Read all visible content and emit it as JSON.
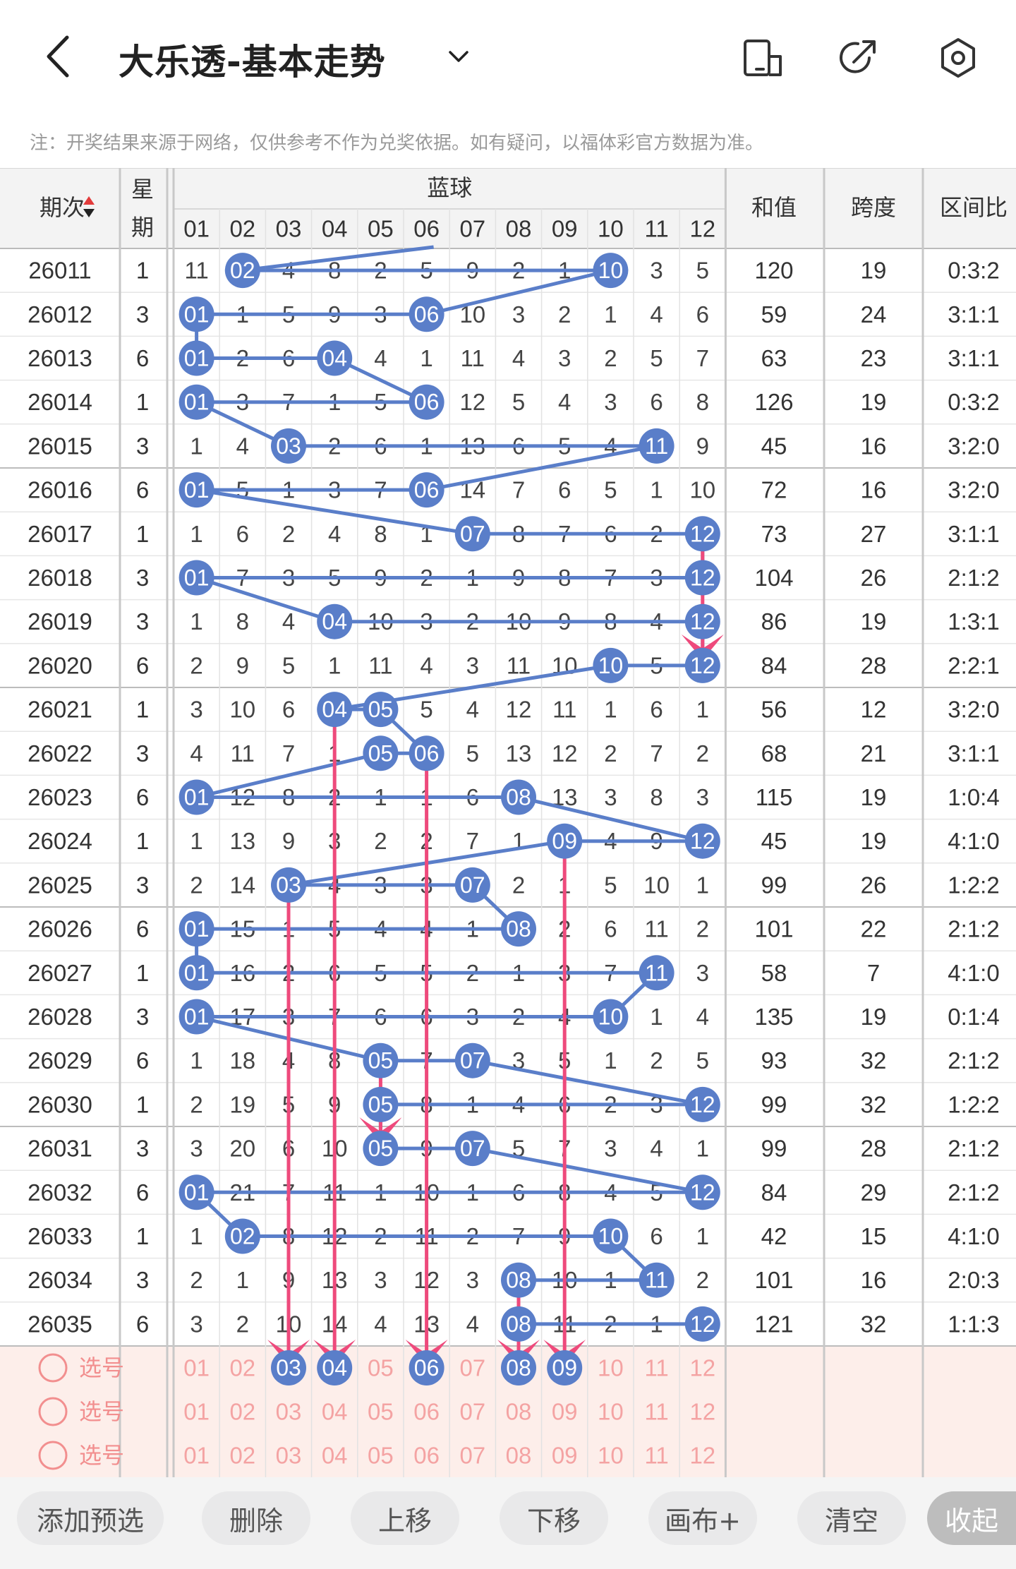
{
  "header": {
    "title": "大乐透-基本走势",
    "note": "注：开奖结果来源于网络，仅供参考不作为兑奖依据。如有疑问，以福体彩官方数据为准。",
    "icons": [
      "back-icon",
      "chevron-down-icon",
      "screen-icon",
      "share-icon",
      "settings-icon"
    ]
  },
  "table": {
    "col_period": "期次",
    "col_week": "星期",
    "col_blue": "蓝球",
    "col_sum": "和值",
    "col_span": "跨度",
    "col_ratio": "区间比",
    "ball_numbers": [
      "01",
      "02",
      "03",
      "04",
      "05",
      "06",
      "07",
      "08",
      "09",
      "10",
      "11",
      "12"
    ],
    "rows": [
      {
        "period": "26011",
        "week": "1",
        "cells": [
          "11",
          "02",
          "4",
          "8",
          "2",
          "5",
          "9",
          "2",
          "1",
          "10",
          "3",
          "5"
        ],
        "hits": [
          2,
          10
        ],
        "sum": "120",
        "span": "19",
        "ratio": "0:3:2"
      },
      {
        "period": "26012",
        "week": "3",
        "cells": [
          "01",
          "1",
          "5",
          "9",
          "3",
          "06",
          "10",
          "3",
          "2",
          "1",
          "4",
          "6"
        ],
        "hits": [
          1,
          6
        ],
        "sum": "59",
        "span": "24",
        "ratio": "3:1:1"
      },
      {
        "period": "26013",
        "week": "6",
        "cells": [
          "01",
          "2",
          "6",
          "04",
          "4",
          "1",
          "11",
          "4",
          "3",
          "2",
          "5",
          "7"
        ],
        "hits": [
          1,
          4
        ],
        "sum": "63",
        "span": "23",
        "ratio": "3:1:1"
      },
      {
        "period": "26014",
        "week": "1",
        "cells": [
          "01",
          "3",
          "7",
          "1",
          "5",
          "06",
          "12",
          "5",
          "4",
          "3",
          "6",
          "8"
        ],
        "hits": [
          1,
          6
        ],
        "sum": "126",
        "span": "19",
        "ratio": "0:3:2"
      },
      {
        "period": "26015",
        "week": "3",
        "cells": [
          "1",
          "4",
          "03",
          "2",
          "6",
          "1",
          "13",
          "6",
          "5",
          "4",
          "11",
          "9"
        ],
        "hits": [
          3,
          11
        ],
        "sum": "45",
        "span": "16",
        "ratio": "3:2:0"
      },
      {
        "period": "26016",
        "week": "6",
        "cells": [
          "01",
          "5",
          "1",
          "3",
          "7",
          "06",
          "14",
          "7",
          "6",
          "5",
          "1",
          "10"
        ],
        "hits": [
          1,
          6
        ],
        "sum": "72",
        "span": "16",
        "ratio": "3:2:0"
      },
      {
        "period": "26017",
        "week": "1",
        "cells": [
          "1",
          "6",
          "2",
          "4",
          "8",
          "1",
          "07",
          "8",
          "7",
          "6",
          "2",
          "12"
        ],
        "hits": [
          7,
          12
        ],
        "sum": "73",
        "span": "27",
        "ratio": "3:1:1"
      },
      {
        "period": "26018",
        "week": "3",
        "cells": [
          "01",
          "7",
          "3",
          "5",
          "9",
          "2",
          "1",
          "9",
          "8",
          "7",
          "3",
          "12"
        ],
        "hits": [
          1,
          12
        ],
        "sum": "104",
        "span": "26",
        "ratio": "2:1:2"
      },
      {
        "period": "26019",
        "week": "3",
        "cells": [
          "1",
          "8",
          "4",
          "04",
          "10",
          "3",
          "2",
          "10",
          "9",
          "8",
          "4",
          "12"
        ],
        "hits": [
          4,
          12
        ],
        "sum": "86",
        "span": "19",
        "ratio": "1:3:1"
      },
      {
        "period": "26020",
        "week": "6",
        "cells": [
          "2",
          "9",
          "5",
          "1",
          "11",
          "4",
          "3",
          "11",
          "10",
          "10",
          "5",
          "12"
        ],
        "hits": [
          10,
          12
        ],
        "sum": "84",
        "span": "28",
        "ratio": "2:2:1"
      },
      {
        "period": "26021",
        "week": "1",
        "cells": [
          "3",
          "10",
          "6",
          "04",
          "05",
          "5",
          "4",
          "12",
          "11",
          "1",
          "6",
          "1"
        ],
        "hits": [
          4,
          5
        ],
        "sum": "56",
        "span": "12",
        "ratio": "3:2:0"
      },
      {
        "period": "26022",
        "week": "3",
        "cells": [
          "4",
          "11",
          "7",
          "1",
          "05",
          "06",
          "5",
          "13",
          "12",
          "2",
          "7",
          "2"
        ],
        "hits": [
          5,
          6
        ],
        "sum": "68",
        "span": "21",
        "ratio": "3:1:1"
      },
      {
        "period": "26023",
        "week": "6",
        "cells": [
          "01",
          "12",
          "8",
          "2",
          "1",
          "1",
          "6",
          "08",
          "13",
          "3",
          "8",
          "3"
        ],
        "hits": [
          1,
          8
        ],
        "sum": "115",
        "span": "19",
        "ratio": "1:0:4"
      },
      {
        "period": "26024",
        "week": "1",
        "cells": [
          "1",
          "13",
          "9",
          "3",
          "2",
          "2",
          "7",
          "1",
          "09",
          "4",
          "9",
          "12"
        ],
        "hits": [
          9,
          12
        ],
        "sum": "45",
        "span": "19",
        "ratio": "4:1:0"
      },
      {
        "period": "26025",
        "week": "3",
        "cells": [
          "2",
          "14",
          "03",
          "4",
          "3",
          "3",
          "07",
          "2",
          "1",
          "5",
          "10",
          "1"
        ],
        "hits": [
          3,
          7
        ],
        "sum": "99",
        "span": "26",
        "ratio": "1:2:2"
      },
      {
        "period": "26026",
        "week": "6",
        "cells": [
          "01",
          "15",
          "1",
          "5",
          "4",
          "4",
          "1",
          "08",
          "2",
          "6",
          "11",
          "2"
        ],
        "hits": [
          1,
          8
        ],
        "sum": "101",
        "span": "22",
        "ratio": "2:1:2"
      },
      {
        "period": "26027",
        "week": "1",
        "cells": [
          "01",
          "16",
          "2",
          "6",
          "5",
          "5",
          "2",
          "1",
          "3",
          "7",
          "11",
          "3"
        ],
        "hits": [
          1,
          11
        ],
        "sum": "58",
        "span": "7",
        "ratio": "4:1:0"
      },
      {
        "period": "26028",
        "week": "3",
        "cells": [
          "01",
          "17",
          "3",
          "7",
          "6",
          "6",
          "3",
          "2",
          "4",
          "10",
          "1",
          "4"
        ],
        "hits": [
          1,
          10
        ],
        "sum": "135",
        "span": "19",
        "ratio": "0:1:4"
      },
      {
        "period": "26029",
        "week": "6",
        "cells": [
          "1",
          "18",
          "4",
          "8",
          "05",
          "7",
          "07",
          "3",
          "5",
          "1",
          "2",
          "5"
        ],
        "hits": [
          5,
          7
        ],
        "sum": "93",
        "span": "32",
        "ratio": "2:1:2"
      },
      {
        "period": "26030",
        "week": "1",
        "cells": [
          "2",
          "19",
          "5",
          "9",
          "05",
          "8",
          "1",
          "4",
          "6",
          "2",
          "3",
          "12"
        ],
        "hits": [
          5,
          12
        ],
        "sum": "99",
        "span": "32",
        "ratio": "1:2:2"
      },
      {
        "period": "26031",
        "week": "3",
        "cells": [
          "3",
          "20",
          "6",
          "10",
          "05",
          "9",
          "07",
          "5",
          "7",
          "3",
          "4",
          "1"
        ],
        "hits": [
          5,
          7
        ],
        "sum": "99",
        "span": "28",
        "ratio": "2:1:2"
      },
      {
        "period": "26032",
        "week": "6",
        "cells": [
          "01",
          "21",
          "7",
          "11",
          "1",
          "10",
          "1",
          "6",
          "8",
          "4",
          "5",
          "12"
        ],
        "hits": [
          1,
          12
        ],
        "sum": "84",
        "span": "29",
        "ratio": "2:1:2"
      },
      {
        "period": "26033",
        "week": "1",
        "cells": [
          "1",
          "02",
          "8",
          "12",
          "2",
          "11",
          "2",
          "7",
          "9",
          "10",
          "6",
          "1"
        ],
        "hits": [
          2,
          10
        ],
        "sum": "42",
        "span": "15",
        "ratio": "4:1:0"
      },
      {
        "period": "26034",
        "week": "3",
        "cells": [
          "2",
          "1",
          "9",
          "13",
          "3",
          "12",
          "3",
          "08",
          "10",
          "1",
          "11",
          "2"
        ],
        "hits": [
          8,
          11
        ],
        "sum": "101",
        "span": "16",
        "ratio": "2:0:3"
      },
      {
        "period": "26035",
        "week": "6",
        "cells": [
          "3",
          "2",
          "10",
          "14",
          "4",
          "13",
          "4",
          "08",
          "11",
          "2",
          "1",
          "12"
        ],
        "hits": [
          8,
          12
        ],
        "sum": "121",
        "span": "32",
        "ratio": "1:1:3"
      }
    ],
    "picker_label": "选号",
    "picker_selected": [
      3,
      4,
      6,
      8,
      9
    ]
  },
  "toolbar": {
    "add": "添加预选",
    "delete": "删除",
    "up": "上移",
    "down": "下移",
    "canvas": "画布+",
    "clear": "清空",
    "collapse": "收起"
  },
  "colors": {
    "blue_ball": "#5a7ec9",
    "pink_arrow": "#ee4a7c",
    "picker_bg": "#fdeeea",
    "picker_num": "#f4a3a3",
    "grid": "#d8d8d8"
  }
}
